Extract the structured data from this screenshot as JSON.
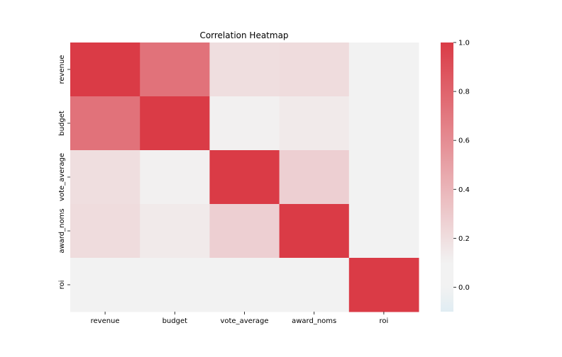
{
  "chart_data": {
    "type": "heatmap",
    "title": "Correlation Heatmap",
    "xlabel": "",
    "ylabel": "",
    "x_categories": [
      "revenue",
      "budget",
      "vote_average",
      "award_noms",
      "roi"
    ],
    "y_categories": [
      "revenue",
      "budget",
      "vote_average",
      "award_noms",
      "roi"
    ],
    "values": [
      [
        1.0,
        0.73,
        0.2,
        0.21,
        0.0
      ],
      [
        0.73,
        1.0,
        0.11,
        0.14,
        0.0
      ],
      [
        0.2,
        0.11,
        1.0,
        0.27,
        0.0
      ],
      [
        0.21,
        0.14,
        0.27,
        1.0,
        0.0
      ],
      [
        0.0,
        0.0,
        0.0,
        0.0,
        1.0
      ]
    ],
    "colorbar": {
      "min": -0.1,
      "max": 1.0,
      "ticks": [
        1.0,
        0.8,
        0.6,
        0.4,
        0.2,
        0.0
      ],
      "tick_labels": [
        "1.0",
        "0.8",
        "0.6",
        "0.4",
        "0.2",
        "0.0"
      ]
    },
    "colors": {
      "low": "#e0edf3",
      "center": "#f2f2f2",
      "high": "#da3b46"
    },
    "grid": false
  }
}
